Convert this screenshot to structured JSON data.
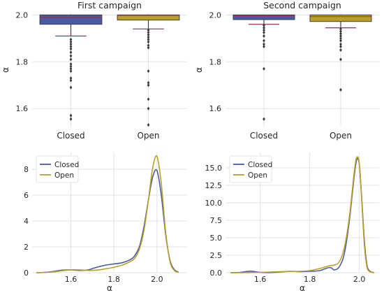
{
  "colors": {
    "closed": "#4a5aa3",
    "open": "#b8a12b",
    "grid": "#e3e3e3",
    "text": "#262626",
    "median": "#9c2b4e"
  },
  "chart_data": [
    {
      "type": "box",
      "title": "First campaign",
      "ylabel": "α",
      "categories": [
        "Closed",
        "Open"
      ],
      "ylim": [
        1.52,
        2.01
      ],
      "yticks": [
        "1.6",
        "1.8",
        "2.0"
      ],
      "ytick_values": [
        1.6,
        1.8,
        2.0
      ],
      "grid": true,
      "boxes": [
        {
          "name": "Closed",
          "q1": 1.96,
          "median": 1.99,
          "q3": 2.0,
          "whisker_low": 1.91,
          "whisker_high": 2.0,
          "outliers": [
            1.895,
            1.885,
            1.875,
            1.865,
            1.855,
            1.84,
            1.825,
            1.81,
            1.79,
            1.78,
            1.77,
            1.76,
            1.73,
            1.72,
            1.69,
            1.57,
            1.555
          ]
        },
        {
          "name": "Open",
          "q1": 1.978,
          "median": 1.998,
          "q3": 2.0,
          "whisker_low": 1.94,
          "whisker_high": 2.0,
          "outliers": [
            1.935,
            1.925,
            1.915,
            1.905,
            1.895,
            1.885,
            1.87,
            1.86,
            1.76,
            1.71,
            1.7,
            1.64,
            1.6,
            1.53
          ]
        }
      ]
    },
    {
      "type": "box",
      "title": "Second campaign",
      "ylabel": "α",
      "categories": [
        "Closed",
        "Open"
      ],
      "ylim": [
        1.52,
        2.01
      ],
      "yticks": [
        "1.6",
        "1.8",
        "2.0"
      ],
      "ytick_values": [
        1.6,
        1.8,
        2.0
      ],
      "grid": true,
      "boxes": [
        {
          "name": "Closed",
          "q1": 1.98,
          "median": 1.997,
          "q3": 2.0,
          "whisker_low": 1.96,
          "whisker_high": 2.0,
          "outliers": [
            1.955,
            1.945,
            1.935,
            1.925,
            1.91,
            1.89,
            1.875,
            1.865,
            1.77,
            1.555
          ]
        },
        {
          "name": "Open",
          "q1": 1.972,
          "median": 1.993,
          "q3": 2.0,
          "whisker_low": 1.945,
          "whisker_high": 2.0,
          "outliers": [
            1.94,
            1.93,
            1.92,
            1.91,
            1.9,
            1.89,
            1.875,
            1.865,
            1.85,
            1.81,
            1.68
          ]
        }
      ]
    },
    {
      "type": "line",
      "xlabel": "α",
      "ylabel": "",
      "xlim": [
        1.42,
        2.14
      ],
      "ylim": [
        0,
        9.3
      ],
      "xticks": [
        "1.6",
        "1.8",
        "2.0"
      ],
      "xtick_values": [
        1.6,
        1.8,
        2.0
      ],
      "yticks": [
        "0",
        "2",
        "4",
        "6",
        "8"
      ],
      "ytick_values": [
        0,
        2,
        4,
        6,
        8
      ],
      "legend": "top-left",
      "grid": true,
      "x": [
        1.44,
        1.48,
        1.52,
        1.56,
        1.6,
        1.64,
        1.68,
        1.72,
        1.76,
        1.8,
        1.84,
        1.88,
        1.9,
        1.92,
        1.94,
        1.96,
        1.98,
        2.0,
        2.02,
        2.04,
        2.06,
        2.08,
        2.1
      ],
      "series": [
        {
          "name": "Closed",
          "values": [
            0.0,
            0.03,
            0.1,
            0.2,
            0.22,
            0.18,
            0.22,
            0.42,
            0.58,
            0.68,
            0.78,
            1.05,
            1.4,
            2.1,
            3.6,
            5.6,
            7.4,
            7.9,
            6.0,
            3.0,
            1.0,
            0.25,
            0.05
          ]
        },
        {
          "name": "Open",
          "values": [
            0.0,
            0.02,
            0.06,
            0.15,
            0.22,
            0.22,
            0.18,
            0.2,
            0.3,
            0.42,
            0.6,
            0.9,
            1.2,
            1.9,
            3.3,
            5.6,
            8.1,
            9.0,
            6.9,
            3.2,
            0.9,
            0.18,
            0.02
          ]
        }
      ]
    },
    {
      "type": "line",
      "xlabel": "α",
      "ylabel": "",
      "xlim": [
        1.46,
        2.08
      ],
      "ylim": [
        0,
        17.2
      ],
      "xticks": [
        "1.6",
        "1.8",
        "2.0"
      ],
      "xtick_values": [
        1.6,
        1.8,
        2.0
      ],
      "yticks": [
        "0.0",
        "2.5",
        "5.0",
        "7.5",
        "10.0",
        "12.5",
        "15.0"
      ],
      "ytick_values": [
        0,
        2.5,
        5.0,
        7.5,
        10.0,
        12.5,
        15.0
      ],
      "legend": "top-left",
      "grid": true,
      "x": [
        1.48,
        1.52,
        1.56,
        1.6,
        1.64,
        1.68,
        1.72,
        1.76,
        1.8,
        1.84,
        1.88,
        1.9,
        1.92,
        1.94,
        1.96,
        1.98,
        1.99,
        2.0,
        2.01,
        2.02,
        2.03,
        2.04,
        2.06
      ],
      "series": [
        {
          "name": "Closed",
          "values": [
            0.0,
            0.05,
            0.22,
            0.05,
            0.02,
            0.1,
            0.2,
            0.15,
            0.2,
            0.3,
            0.75,
            0.4,
            0.9,
            2.8,
            7.5,
            14.0,
            16.2,
            15.5,
            10.5,
            4.8,
            1.3,
            0.3,
            0.0
          ]
        },
        {
          "name": "Open",
          "values": [
            0.0,
            0.0,
            0.02,
            0.05,
            0.1,
            0.15,
            0.18,
            0.2,
            0.3,
            0.6,
            1.0,
            1.1,
            1.6,
            3.6,
            8.0,
            14.5,
            16.5,
            15.6,
            10.2,
            4.2,
            1.0,
            0.2,
            0.0
          ]
        }
      ]
    }
  ]
}
